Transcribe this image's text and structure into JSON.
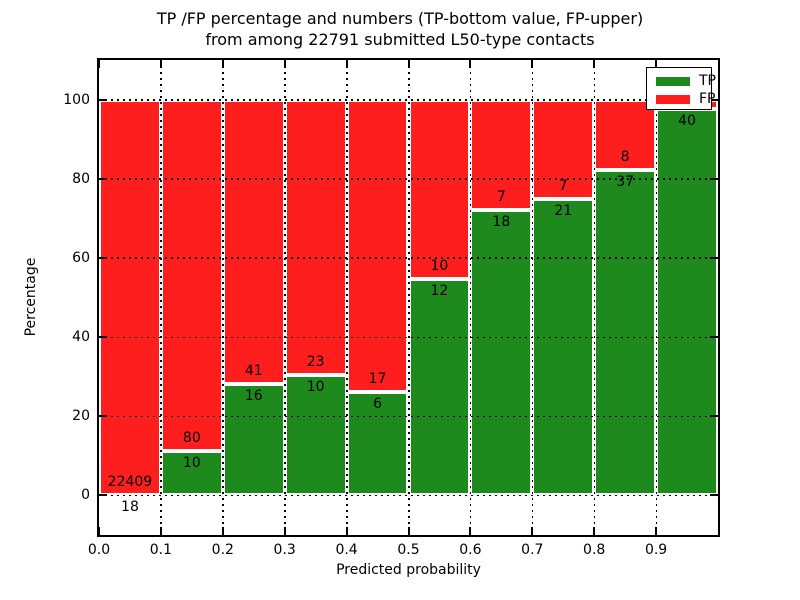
{
  "figure": {
    "background": "#ffffff",
    "plot_border_color": "#000000"
  },
  "chart_data": {
    "type": "bar",
    "stacked": true,
    "title_line1": "TP /FP percentage and numbers (TP-bottom value, FP-upper)",
    "title_line2": "from among 22791 submitted L50-type contacts",
    "xlabel": "Predicted probability",
    "ylabel": "Percentage",
    "total_submitted_contacts": 22791,
    "xlim": [
      0.0,
      1.0
    ],
    "ylim": [
      -10,
      110
    ],
    "x_ticks": [
      {
        "value": 0.0,
        "label": "0.0"
      },
      {
        "value": 0.1,
        "label": "0.1"
      },
      {
        "value": 0.2,
        "label": "0.2"
      },
      {
        "value": 0.3,
        "label": "0.3"
      },
      {
        "value": 0.4,
        "label": "0.4"
      },
      {
        "value": 0.5,
        "label": "0.5"
      },
      {
        "value": 0.6,
        "label": "0.6"
      },
      {
        "value": 0.7,
        "label": "0.7"
      },
      {
        "value": 0.8,
        "label": "0.8"
      },
      {
        "value": 0.9,
        "label": "0.9"
      }
    ],
    "y_ticks": [
      {
        "value": 0,
        "label": "0"
      },
      {
        "value": 20,
        "label": "20"
      },
      {
        "value": 40,
        "label": "40"
      },
      {
        "value": 60,
        "label": "60"
      },
      {
        "value": 80,
        "label": "80"
      },
      {
        "value": 100,
        "label": "100"
      }
    ],
    "grid": {
      "style": "dotted",
      "color": "#000000",
      "on": true
    },
    "colors": {
      "tp": "#1e8a1e",
      "fp": "#fe1e1e",
      "bar_edge": "#ffffff"
    },
    "legend": {
      "position": "upper right",
      "entries": [
        {
          "label": "TP",
          "color_key": "tp"
        },
        {
          "label": "FP",
          "color_key": "fp"
        }
      ]
    },
    "bins": [
      {
        "x0": 0.0,
        "x1": 0.1,
        "tp_count": 18,
        "fp_count": 22409,
        "tp_pct": 0.08,
        "tp_label": "18",
        "fp_label": "22409"
      },
      {
        "x0": 0.1,
        "x1": 0.2,
        "tp_count": 10,
        "fp_count": 80,
        "tp_pct": 11.11,
        "tp_label": "10",
        "fp_label": "80"
      },
      {
        "x0": 0.2,
        "x1": 0.3,
        "tp_count": 16,
        "fp_count": 41,
        "tp_pct": 28.07,
        "tp_label": "16",
        "fp_label": "41"
      },
      {
        "x0": 0.3,
        "x1": 0.4,
        "tp_count": 10,
        "fp_count": 23,
        "tp_pct": 30.3,
        "tp_label": "10",
        "fp_label": "23"
      },
      {
        "x0": 0.4,
        "x1": 0.5,
        "tp_count": 6,
        "fp_count": 17,
        "tp_pct": 26.09,
        "tp_label": "6",
        "fp_label": "17"
      },
      {
        "x0": 0.5,
        "x1": 0.6,
        "tp_count": 12,
        "fp_count": 10,
        "tp_pct": 54.55,
        "tp_label": "12",
        "fp_label": "10"
      },
      {
        "x0": 0.6,
        "x1": 0.7,
        "tp_count": 18,
        "fp_count": 7,
        "tp_pct": 72.0,
        "tp_label": "18",
        "fp_label": "7"
      },
      {
        "x0": 0.7,
        "x1": 0.8,
        "tp_count": 21,
        "fp_count": 7,
        "tp_pct": 75.0,
        "tp_label": "21",
        "fp_label": "7"
      },
      {
        "x0": 0.8,
        "x1": 0.9,
        "tp_count": 37,
        "fp_count": 8,
        "tp_pct": 82.22,
        "tp_label": "37",
        "fp_label": "8"
      },
      {
        "x0": 0.9,
        "x1": 1.0,
        "tp_count": 40,
        "fp_count": null,
        "tp_pct": 97.56,
        "tp_label": "40",
        "fp_label": ""
      }
    ]
  }
}
